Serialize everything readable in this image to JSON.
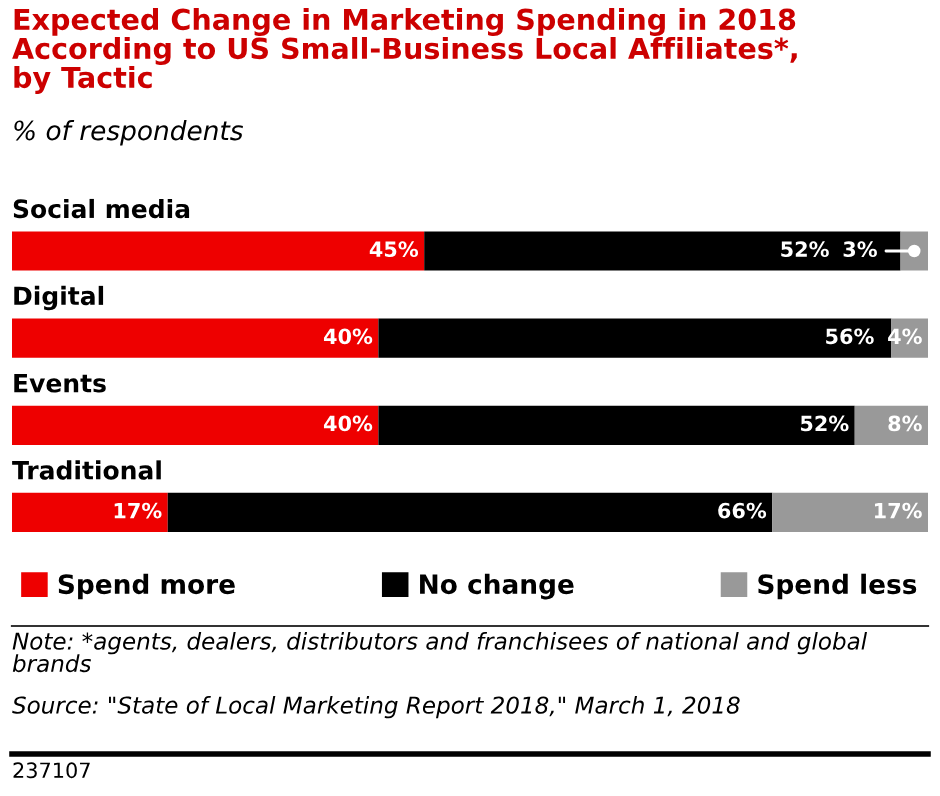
{
  "chart_data": {
    "type": "bar",
    "orientation": "horizontal",
    "stacked": true,
    "title": "Expected Change in Marketing Spending in 2018\nAccording to US Small-Business Local Affiliates*,\nby Tactic",
    "subtitle": "% of respondents",
    "categories": [
      "Social media",
      "Digital",
      "Events",
      "Traditional"
    ],
    "series": [
      {
        "name": "Spend more",
        "color": "#ee0000",
        "values": [
          45,
          40,
          40,
          17
        ],
        "value_labels": [
          "45%",
          "40%",
          "40%",
          "17%"
        ]
      },
      {
        "name": "No change",
        "color": "#000000",
        "values": [
          52,
          56,
          52,
          66
        ],
        "value_labels": [
          "52%",
          "56%",
          "52%",
          "66%"
        ]
      },
      {
        "name": "Spend less",
        "color": "#999999",
        "values": [
          3,
          4,
          8,
          17
        ],
        "value_labels": [
          "3%",
          "4%",
          "8%",
          "17%"
        ]
      }
    ],
    "legend": "bottom",
    "annotations": [
      "Note: *agents, dealers, distributors and franchisees of national and global brands",
      "Source: \"State of Local Marketing Report 2018,\" March 1, 2018",
      "237107"
    ]
  }
}
